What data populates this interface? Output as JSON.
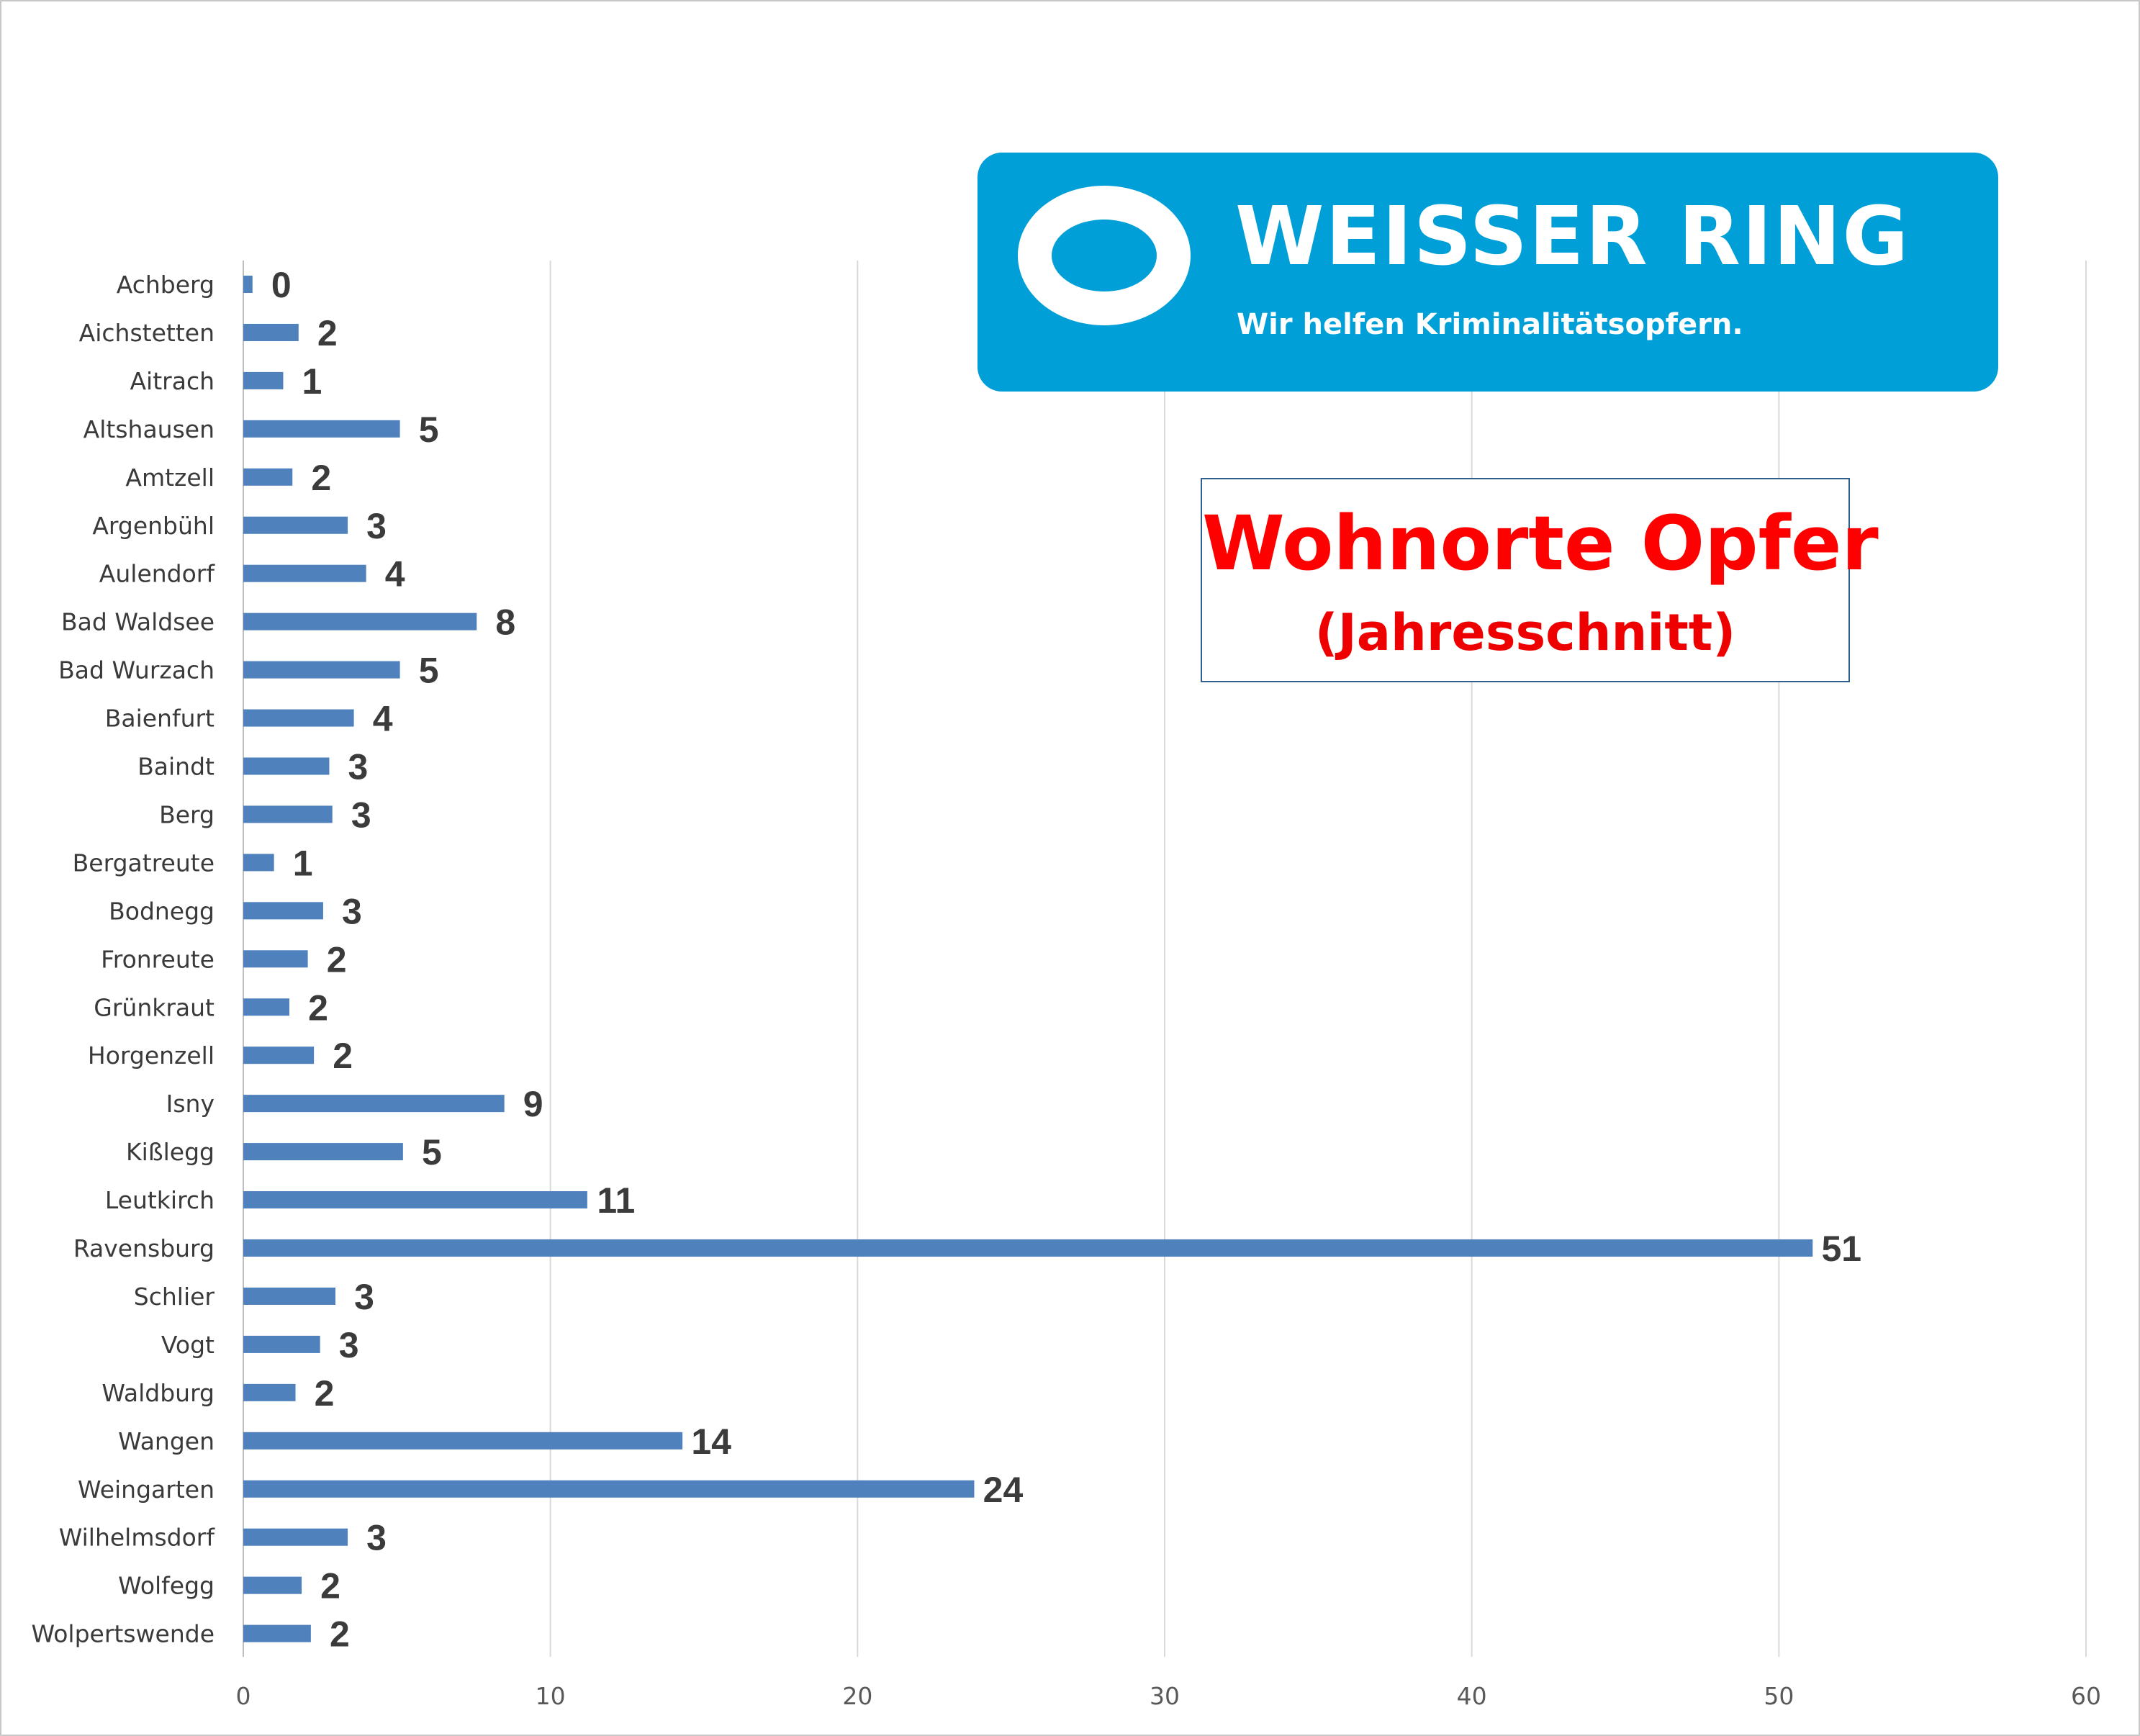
{
  "logo": {
    "name": "WEISSER RING",
    "tagline": "Wir helfen Kriminalitätsopfern.",
    "color": "#009fd8"
  },
  "chart_data": {
    "type": "bar",
    "orientation": "horizontal",
    "title": "Wohnorte Opfer",
    "subtitle": "(Jahresschnitt)",
    "categories": [
      "Achberg",
      "Aichstetten",
      "Aitrach",
      "Altshausen",
      "Amtzell",
      "Argenbühl",
      "Aulendorf",
      "Bad Waldsee",
      "Bad Wurzach",
      "Baienfurt",
      "Baindt",
      "Berg",
      "Bergatreute",
      "Bodnegg",
      "Fronreute",
      "Grünkraut",
      "Horgenzell",
      "Isny",
      "Kißlegg",
      "Leutkirch",
      "Ravensburg",
      "Schlier",
      "Vogt",
      "Waldburg",
      "Wangen",
      "Weingarten",
      "Wilhelmsdorf",
      "Wolfegg",
      "Wolpertswende"
    ],
    "values": [
      0.3,
      1.8,
      1.3,
      5.1,
      1.6,
      3.4,
      4.0,
      7.6,
      5.1,
      3.6,
      2.8,
      2.9,
      1.0,
      2.6,
      2.1,
      1.5,
      2.3,
      8.5,
      5.2,
      11.2,
      51.1,
      3.0,
      2.5,
      1.7,
      14.3,
      23.8,
      3.4,
      1.9,
      2.2
    ],
    "value_labels": [
      "0",
      "2",
      "1",
      "5",
      "2",
      "3",
      "4",
      "8",
      "5",
      "4",
      "3",
      "3",
      "1",
      "3",
      "2",
      "2",
      "2",
      "9",
      "5",
      "11",
      "51",
      "3",
      "3",
      "2",
      "14",
      "24",
      "3",
      "2",
      "2"
    ],
    "xlim": [
      0,
      60
    ],
    "x_ticks": [
      "0",
      "10",
      "20",
      "30",
      "40",
      "50",
      "60"
    ],
    "grid": "vertical",
    "bar_color": "#4f81bd",
    "legend": "none"
  }
}
